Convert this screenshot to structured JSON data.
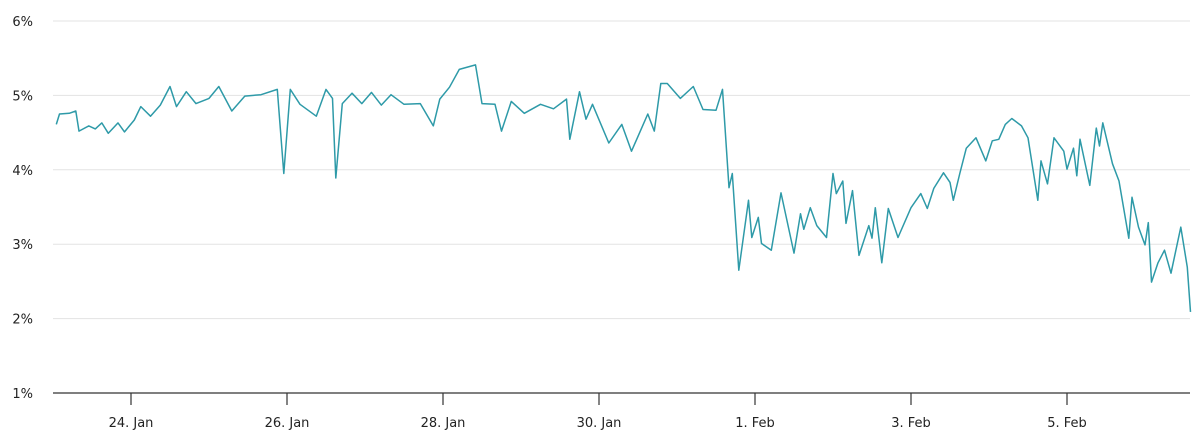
{
  "chart_data": {
    "type": "line",
    "title": "",
    "xlabel": "",
    "ylabel": "",
    "ylim": [
      1,
      6
    ],
    "y_ticks": [
      "1%",
      "2%",
      "3%",
      "4%",
      "5%",
      "6%"
    ],
    "y_tick_values": [
      1,
      2,
      3,
      4,
      5,
      6
    ],
    "x_ticks": [
      "24. Jan",
      "26. Jan",
      "28. Jan",
      "30. Jan",
      "1. Feb",
      "3. Feb",
      "5. Feb"
    ],
    "x_tick_dates": [
      "24 Jan 00:00",
      "26 Jan 00:00",
      "28 Jan 00:00",
      "30 Jan 00:00",
      "1 Feb 00:00",
      "3 Feb 00:00",
      "5 Feb 00:00"
    ],
    "xlim": [
      "23 Jan 00:00",
      "6 Feb 14:00"
    ],
    "grid": true,
    "legend": "none",
    "line_color": "#2e9aa8",
    "grid_color": "#e3e3e3",
    "axis_color": "#333333",
    "series": [
      {
        "points": [
          [
            "23 Jan 01:00",
            4.61
          ],
          [
            "23 Jan 02:00",
            4.75
          ],
          [
            "23 Jan 05:00",
            4.76
          ],
          [
            "23 Jan 07:00",
            4.79
          ],
          [
            "23 Jan 08:00",
            4.52
          ],
          [
            "23 Jan 11:00",
            4.59
          ],
          [
            "23 Jan 13:00",
            4.55
          ],
          [
            "23 Jan 15:00",
            4.63
          ],
          [
            "23 Jan 17:00",
            4.49
          ],
          [
            "23 Jan 20:00",
            4.63
          ],
          [
            "23 Jan 22:00",
            4.51
          ],
          [
            "24 Jan 01:00",
            4.67
          ],
          [
            "24 Jan 03:00",
            4.85
          ],
          [
            "24 Jan 06:00",
            4.72
          ],
          [
            "24 Jan 09:00",
            4.87
          ],
          [
            "24 Jan 12:00",
            5.12
          ],
          [
            "24 Jan 14:00",
            4.85
          ],
          [
            "24 Jan 17:00",
            5.05
          ],
          [
            "24 Jan 20:00",
            4.89
          ],
          [
            "25 Jan 00:00",
            4.96
          ],
          [
            "25 Jan 03:00",
            5.12
          ],
          [
            "25 Jan 07:00",
            4.79
          ],
          [
            "25 Jan 11:00",
            4.99
          ],
          [
            "25 Jan 16:00",
            5.01
          ],
          [
            "25 Jan 21:00",
            5.08
          ],
          [
            "25 Jan 23:00",
            3.95
          ],
          [
            "26 Jan 01:00",
            5.08
          ],
          [
            "26 Jan 04:00",
            4.88
          ],
          [
            "26 Jan 09:00",
            4.72
          ],
          [
            "26 Jan 12:00",
            5.08
          ],
          [
            "26 Jan 14:00",
            4.96
          ],
          [
            "26 Jan 15:00",
            3.89
          ],
          [
            "26 Jan 17:00",
            4.89
          ],
          [
            "26 Jan 20:00",
            5.03
          ],
          [
            "26 Jan 23:00",
            4.89
          ],
          [
            "27 Jan 02:00",
            5.04
          ],
          [
            "27 Jan 05:00",
            4.87
          ],
          [
            "27 Jan 08:00",
            5.01
          ],
          [
            "27 Jan 12:00",
            4.88
          ],
          [
            "27 Jan 17:00",
            4.89
          ],
          [
            "27 Jan 21:00",
            4.59
          ],
          [
            "27 Jan 23:00",
            4.95
          ],
          [
            "28 Jan 02:00",
            5.11
          ],
          [
            "28 Jan 05:00",
            5.35
          ],
          [
            "28 Jan 10:00",
            5.41
          ],
          [
            "28 Jan 12:00",
            4.89
          ],
          [
            "28 Jan 16:00",
            4.88
          ],
          [
            "28 Jan 18:00",
            4.52
          ],
          [
            "28 Jan 21:00",
            4.92
          ],
          [
            "29 Jan 01:00",
            4.76
          ],
          [
            "29 Jan 06:00",
            4.88
          ],
          [
            "29 Jan 10:00",
            4.82
          ],
          [
            "29 Jan 14:00",
            4.95
          ],
          [
            "29 Jan 15:00",
            4.41
          ],
          [
            "29 Jan 18:00",
            5.05
          ],
          [
            "29 Jan 20:00",
            4.68
          ],
          [
            "29 Jan 22:00",
            4.88
          ],
          [
            "30 Jan 03:00",
            4.36
          ],
          [
            "30 Jan 07:00",
            4.61
          ],
          [
            "30 Jan 10:00",
            4.25
          ],
          [
            "30 Jan 15:00",
            4.75
          ],
          [
            "30 Jan 17:00",
            4.52
          ],
          [
            "30 Jan 19:00",
            5.16
          ],
          [
            "30 Jan 21:00",
            5.16
          ],
          [
            "31 Jan 01:00",
            4.96
          ],
          [
            "31 Jan 05:00",
            5.12
          ],
          [
            "31 Jan 08:00",
            4.81
          ],
          [
            "31 Jan 12:00",
            4.8
          ],
          [
            "31 Jan 14:00",
            5.08
          ],
          [
            "31 Jan 16:00",
            3.76
          ],
          [
            "31 Jan 17:00",
            3.95
          ],
          [
            "31 Jan 19:00",
            2.65
          ],
          [
            "31 Jan 22:00",
            3.59
          ],
          [
            "31 Jan 23:00",
            3.09
          ],
          [
            "1 Feb 01:00",
            3.36
          ],
          [
            "1 Feb 02:00",
            3.01
          ],
          [
            "1 Feb 05:00",
            2.92
          ],
          [
            "1 Feb 08:00",
            3.69
          ],
          [
            "1 Feb 12:00",
            2.88
          ],
          [
            "1 Feb 14:00",
            3.41
          ],
          [
            "1 Feb 15:00",
            3.2
          ],
          [
            "1 Feb 17:00",
            3.49
          ],
          [
            "1 Feb 19:00",
            3.25
          ],
          [
            "1 Feb 22:00",
            3.09
          ],
          [
            "2 Feb 00:00",
            3.95
          ],
          [
            "2 Feb 01:00",
            3.68
          ],
          [
            "2 Feb 03:00",
            3.85
          ],
          [
            "2 Feb 04:00",
            3.28
          ],
          [
            "2 Feb 06:00",
            3.72
          ],
          [
            "2 Feb 08:00",
            2.85
          ],
          [
            "2 Feb 11:00",
            3.25
          ],
          [
            "2 Feb 12:00",
            3.08
          ],
          [
            "2 Feb 13:00",
            3.49
          ],
          [
            "2 Feb 15:00",
            2.75
          ],
          [
            "2 Feb 17:00",
            3.48
          ],
          [
            "2 Feb 20:00",
            3.09
          ],
          [
            "3 Feb 00:00",
            3.49
          ],
          [
            "3 Feb 03:00",
            3.68
          ],
          [
            "3 Feb 05:00",
            3.48
          ],
          [
            "3 Feb 07:00",
            3.75
          ],
          [
            "3 Feb 10:00",
            3.96
          ],
          [
            "3 Feb 12:00",
            3.83
          ],
          [
            "3 Feb 13:00",
            3.59
          ],
          [
            "3 Feb 15:00",
            3.95
          ],
          [
            "3 Feb 17:00",
            4.29
          ],
          [
            "3 Feb 20:00",
            4.43
          ],
          [
            "3 Feb 23:00",
            4.12
          ],
          [
            "4 Feb 01:00",
            4.39
          ],
          [
            "4 Feb 03:00",
            4.41
          ],
          [
            "4 Feb 05:00",
            4.61
          ],
          [
            "4 Feb 07:00",
            4.69
          ],
          [
            "4 Feb 10:00",
            4.59
          ],
          [
            "4 Feb 12:00",
            4.43
          ],
          [
            "4 Feb 15:00",
            3.59
          ],
          [
            "4 Feb 16:00",
            4.12
          ],
          [
            "4 Feb 18:00",
            3.81
          ],
          [
            "4 Feb 20:00",
            4.43
          ],
          [
            "4 Feb 23:00",
            4.25
          ],
          [
            "5 Feb 00:00",
            4.01
          ],
          [
            "5 Feb 02:00",
            4.29
          ],
          [
            "5 Feb 03:00",
            3.92
          ],
          [
            "5 Feb 04:00",
            4.41
          ],
          [
            "5 Feb 07:00",
            3.79
          ],
          [
            "5 Feb 09:00",
            4.56
          ],
          [
            "5 Feb 10:00",
            4.32
          ],
          [
            "5 Feb 11:00",
            4.63
          ],
          [
            "5 Feb 14:00",
            4.08
          ],
          [
            "5 Feb 16:00",
            3.85
          ],
          [
            "5 Feb 19:00",
            3.08
          ],
          [
            "5 Feb 20:00",
            3.63
          ],
          [
            "5 Feb 22:00",
            3.23
          ],
          [
            "6 Feb 00:00",
            2.99
          ],
          [
            "6 Feb 01:00",
            3.29
          ],
          [
            "6 Feb 02:00",
            2.49
          ],
          [
            "6 Feb 04:00",
            2.75
          ],
          [
            "6 Feb 06:00",
            2.92
          ],
          [
            "6 Feb 08:00",
            2.61
          ],
          [
            "6 Feb 11:00",
            3.23
          ],
          [
            "6 Feb 13:00",
            2.69
          ],
          [
            "6 Feb 14:00",
            2.09
          ]
        ]
      }
    ]
  }
}
